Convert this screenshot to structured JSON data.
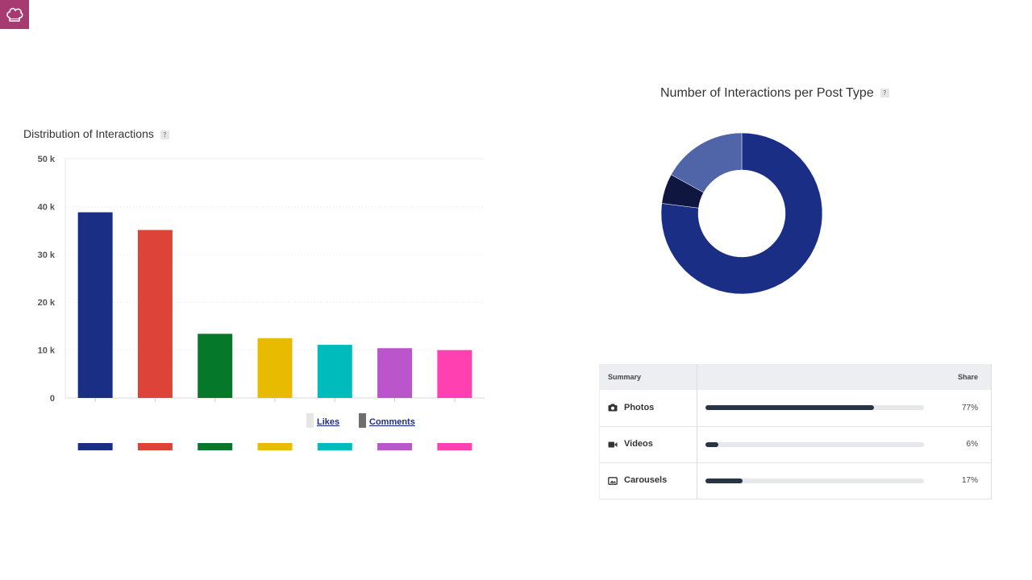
{
  "logo": {
    "icon": "chef-hat-icon",
    "color": "#a83a72"
  },
  "help_marker": "?",
  "left_chart": {
    "title": "Distribution of Interactions",
    "legend": [
      {
        "label": "Likes",
        "color": "#e6e6e6"
      },
      {
        "label": "Comments",
        "color": "#6e6e6e"
      }
    ]
  },
  "right_chart": {
    "title": "Number of Interactions per Post Type"
  },
  "chart_data": [
    {
      "type": "bar",
      "title": "Distribution of Interactions",
      "y_ticks": [
        "0",
        "10 k",
        "20 k",
        "30 k",
        "40 k",
        "50 k"
      ],
      "ylim": [
        0,
        50000
      ],
      "grid": true,
      "values": [
        38800,
        35100,
        13400,
        12500,
        11100,
        10400,
        10000
      ],
      "colors": [
        "#1b2e85",
        "#dd4437",
        "#05782a",
        "#e8bb00",
        "#00bbbb",
        "#bb55cc",
        "#ff40b0"
      ]
    },
    {
      "type": "pie",
      "title": "Number of Interactions per Post Type",
      "slices": [
        {
          "value": 77,
          "color": "#1b2e85"
        },
        {
          "value": 6,
          "color": "#0f1740"
        },
        {
          "value": 17,
          "color": "#5065a8"
        }
      ]
    }
  ],
  "summary_table": {
    "headers": {
      "summary": "Summary",
      "share": "Share"
    },
    "rows": [
      {
        "icon": "camera-icon",
        "label": "Photos",
        "share": "77%",
        "fraction": 0.77
      },
      {
        "icon": "video-camera-icon",
        "label": "Videos",
        "share": "6%",
        "fraction": 0.06
      },
      {
        "icon": "image-icon",
        "label": "Carousels",
        "share": "17%",
        "fraction": 0.17
      }
    ]
  }
}
